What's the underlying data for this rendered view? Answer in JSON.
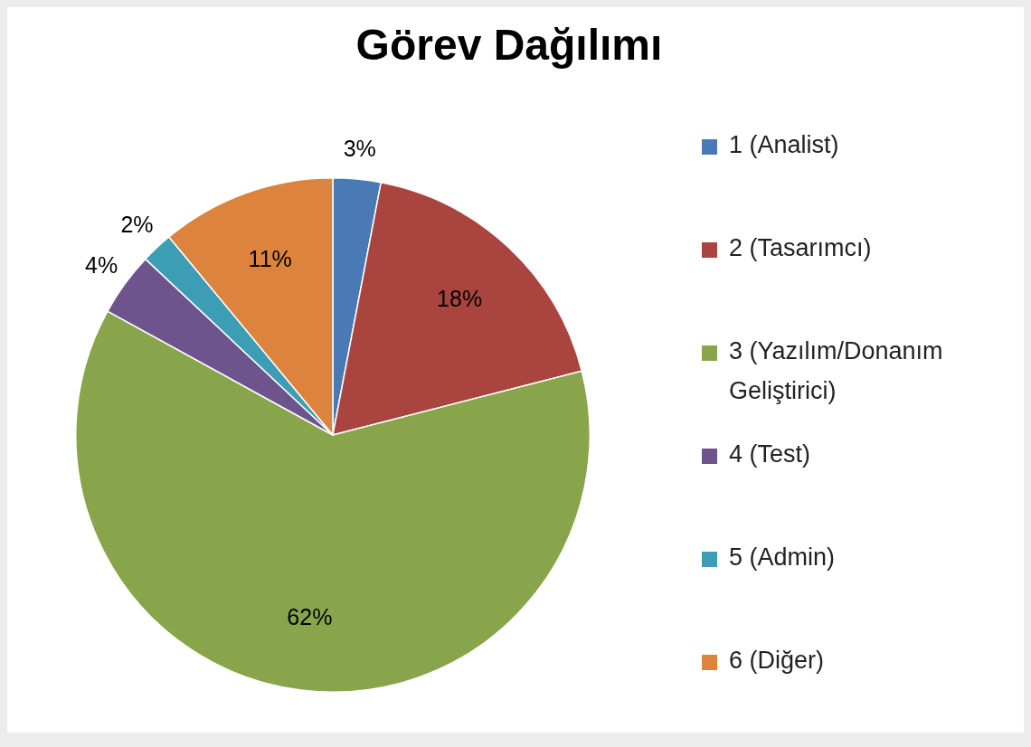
{
  "chart_data": {
    "type": "pie",
    "title": "Görev Dağılımı",
    "categories": [
      "1 (Analist)",
      "2 (Tasarımcı)",
      "3 (Yazılım/Donanım Geliştirici)",
      "4 (Test)",
      "5 (Admin)",
      "6 (Diğer)"
    ],
    "values": [
      3,
      18,
      62,
      4,
      2,
      11
    ],
    "colors": [
      "#4a7ab5",
      "#a9443f",
      "#88a54b",
      "#6e548d",
      "#3d9db5",
      "#dc843d"
    ],
    "value_labels": [
      "3%",
      "18%",
      "62%",
      "4%",
      "2%",
      "11%"
    ],
    "legend": "right"
  }
}
